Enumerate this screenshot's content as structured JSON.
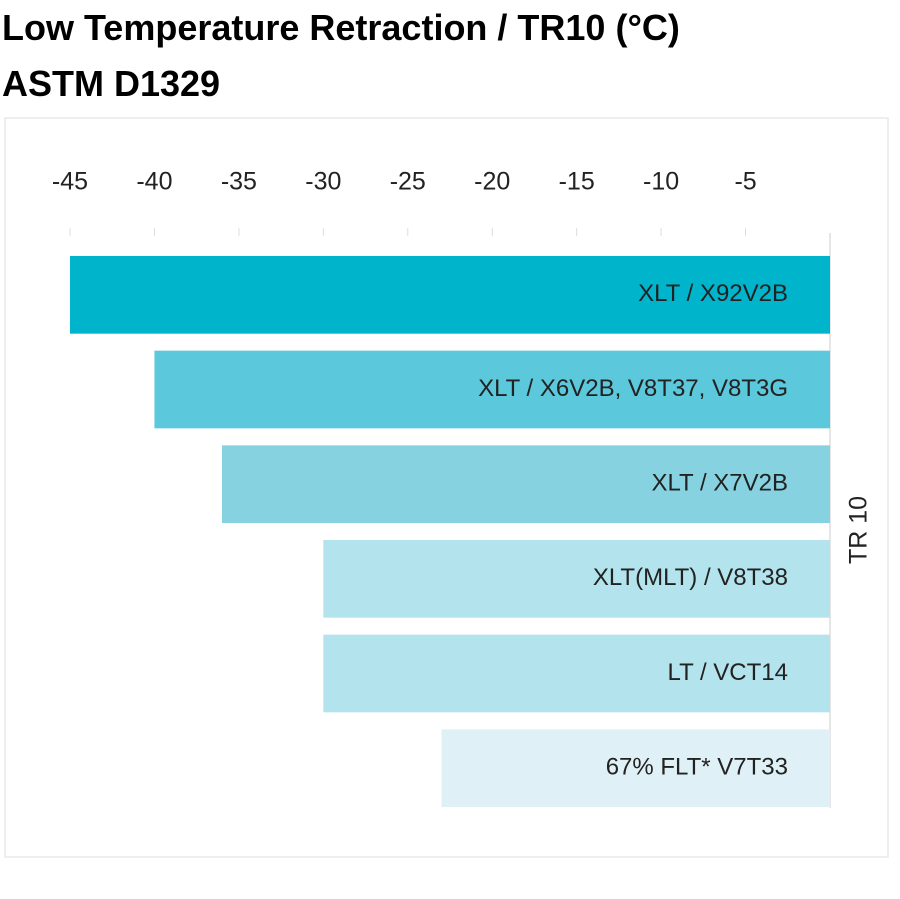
{
  "chart_data": {
    "type": "bar",
    "orientation": "horizontal",
    "title": "Low Temperature Retraction / TR10 (°C)",
    "subtitle": "ASTM D1329",
    "ylabel": "TR 10",
    "categories": [
      "XLT / X92V2B",
      "XLT / X6V2B, V8T37, V8T3G",
      "XLT / X7V2B",
      "XLT(MLT) / V8T38",
      "LT / VCT14",
      "67% FLT* V7T33"
    ],
    "values": [
      -45,
      -40,
      -36,
      -30,
      -30,
      -23
    ],
    "colors": [
      "#00b4cc",
      "#5bc8db",
      "#86d2e1",
      "#b3e3ec",
      "#b3e3ec",
      "#dff1f6"
    ],
    "xlim": [
      -45,
      0
    ],
    "xticks": [
      -45,
      -40,
      -35,
      -30,
      -25,
      -20,
      -15,
      -10,
      -5
    ]
  }
}
